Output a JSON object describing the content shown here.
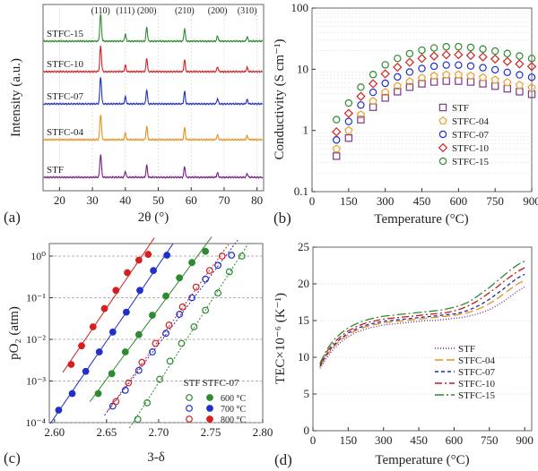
{
  "panels": [
    {
      "letter": "(a)",
      "title": "",
      "chart_data": {
        "type": "line",
        "xlabel": "2θ (°)",
        "ylabel": "Intensity (a.u.)",
        "xlim": [
          15,
          82
        ],
        "x_ticks": [
          "20",
          "30",
          "40",
          "50",
          "60",
          "70",
          "80"
        ],
        "peaks": [
          {
            "hkl": "(110)",
            "two_theta": 32.5
          },
          {
            "hkl": "(111)",
            "two_theta": 40.0
          },
          {
            "hkl": "(200)",
            "two_theta": 46.5
          },
          {
            "hkl": "(210)",
            "two_theta": 58.0
          },
          {
            "hkl": "(200)",
            "two_theta": 68.0
          },
          {
            "hkl": "(310)",
            "two_theta": 77.0
          }
        ],
        "series": [
          {
            "name": "STFC-15",
            "color": "#2e8b30"
          },
          {
            "name": "STFC-10",
            "color": "#d62020"
          },
          {
            "name": "STFC-07",
            "color": "#2030c8"
          },
          {
            "name": "STFC-04",
            "color": "#e8901c"
          },
          {
            "name": "STF",
            "color": "#7a1f8a"
          }
        ]
      }
    },
    {
      "letter": "(b)",
      "chart_data": {
        "type": "scatter",
        "xlabel": "Temperature (°C)",
        "ylabel": "Conductivity (S cm⁻¹)",
        "xlim": [
          0,
          900
        ],
        "ylim": [
          0.1,
          100
        ],
        "yscale": "log",
        "x_ticks": [
          "0",
          "150",
          "300",
          "450",
          "600",
          "750",
          "900"
        ],
        "y_ticks": [
          "0.1",
          "1",
          "10",
          "100"
        ],
        "x": [
          100,
          150,
          200,
          250,
          300,
          350,
          400,
          450,
          500,
          550,
          600,
          650,
          700,
          750,
          800,
          850,
          900
        ],
        "series": [
          {
            "name": "STF",
            "marker": "square",
            "color": "#7a3a8a",
            "values": [
              0.38,
              0.75,
              1.5,
              2.4,
              3.4,
              4.3,
              5.1,
              5.8,
              6.2,
              6.4,
              6.4,
              6.2,
              5.8,
              5.3,
              4.8,
              4.3,
              3.9
            ]
          },
          {
            "name": "STFC-04",
            "marker": "pentagon",
            "color": "#e8a030",
            "values": [
              0.5,
              1.0,
              1.8,
              3.0,
              4.2,
              5.3,
              6.3,
              7.2,
              7.8,
              8.1,
              8.1,
              7.8,
              7.3,
              6.7,
              6.1,
              5.5,
              5.0
            ]
          },
          {
            "name": "STFC-07",
            "marker": "circle",
            "color": "#2030c8",
            "values": [
              0.7,
              1.4,
              2.6,
              4.2,
              5.9,
              7.5,
              9.0,
              10.3,
              11.2,
              11.7,
              11.7,
              11.3,
              10.6,
              9.8,
              8.9,
              8.1,
              7.4
            ]
          },
          {
            "name": "STFC-10",
            "marker": "diamond",
            "color": "#d62020",
            "values": [
              0.95,
              1.9,
              3.6,
              5.8,
              8.4,
              10.8,
              13.0,
              15.0,
              16.4,
              17.2,
              17.3,
              16.8,
              15.9,
              14.7,
              13.4,
              12.2,
              11.1
            ]
          },
          {
            "name": "STFC-15",
            "marker": "circle",
            "color": "#2e8b30",
            "values": [
              1.5,
              2.8,
              5.1,
              8.2,
              11.8,
              15.0,
              18.0,
              20.5,
              22.3,
              23.3,
              23.4,
              22.7,
              21.4,
              19.8,
              18.1,
              16.5,
              15.0
            ]
          }
        ]
      }
    },
    {
      "letter": "(c)",
      "chart_data": {
        "type": "scatter",
        "xlabel": "3-δ",
        "ylabel": "pO₂ (atm)",
        "xlim": [
          2.595,
          2.8
        ],
        "ylim": [
          0.0001,
          2
        ],
        "yscale": "log",
        "x_ticks": [
          "2.60",
          "2.65",
          "2.70",
          "2.75",
          "2.80"
        ],
        "y_ticks": [
          "10⁻⁴",
          "10⁻³",
          "10⁻²",
          "10⁻¹",
          "10⁰"
        ],
        "legend_headers": [
          "STF",
          "STFC-07"
        ],
        "legend_rows": [
          "600 °C",
          "700 °C",
          "800 °C"
        ],
        "series": [
          {
            "name": "STF 600 °C",
            "color": "#2e8b30",
            "filled": false,
            "x": [
              2.68,
              2.689,
              2.701,
              2.711,
              2.722,
              2.734,
              2.745,
              2.757,
              2.768,
              2.78
            ],
            "values": [
              0.00012,
              0.0003,
              0.0011,
              0.003,
              0.008,
              0.02,
              0.05,
              0.13,
              0.42,
              1.0
            ]
          },
          {
            "name": "STF 700 °C",
            "color": "#2030c8",
            "filled": false,
            "x": [
              2.656,
              2.668,
              2.681,
              2.694,
              2.707,
              2.72,
              2.732,
              2.745,
              2.757,
              2.77
            ],
            "values": [
              0.00025,
              0.0006,
              0.0018,
              0.005,
              0.014,
              0.04,
              0.1,
              0.28,
              0.6,
              1.05
            ]
          },
          {
            "name": "STF 800 °C",
            "color": "#d62020",
            "filled": false,
            "x": [
              2.659,
              2.671,
              2.684,
              2.697,
              2.71,
              2.723,
              2.736,
              2.749,
              2.761
            ],
            "values": [
              0.00032,
              0.0009,
              0.0028,
              0.008,
              0.022,
              0.06,
              0.18,
              0.45,
              1.0
            ]
          },
          {
            "name": "STFC-07 600 °C",
            "color": "#2e8b30",
            "filled": true,
            "x": [
              2.642,
              2.655,
              2.668,
              2.681,
              2.694,
              2.707,
              2.72,
              2.732,
              2.745
            ],
            "values": [
              0.0005,
              0.0015,
              0.005,
              0.013,
              0.038,
              0.11,
              0.3,
              0.7,
              1.3
            ]
          },
          {
            "name": "STFC-07 700 °C",
            "color": "#2030c8",
            "filled": true,
            "x": [
              2.604,
              2.617,
              2.63,
              2.643,
              2.656,
              2.669,
              2.682,
              2.695,
              2.708
            ],
            "values": [
              0.0002,
              0.0005,
              0.0017,
              0.005,
              0.015,
              0.045,
              0.15,
              0.45,
              1.05
            ]
          },
          {
            "name": "STFC-07 800 °C",
            "color": "#d62020",
            "filled": true,
            "x": [
              2.616,
              2.626,
              2.637,
              2.648,
              2.659,
              2.67,
              2.681,
              2.69
            ],
            "values": [
              0.0025,
              0.007,
              0.02,
              0.055,
              0.15,
              0.4,
              0.8,
              1.1
            ]
          }
        ]
      }
    },
    {
      "letter": "(d)",
      "chart_data": {
        "type": "line",
        "xlabel": "Temperature (°C)",
        "ylabel": "TEC×10⁻⁶ (K⁻¹)",
        "xlim": [
          0,
          930
        ],
        "ylim": [
          0,
          25
        ],
        "x_ticks": [
          "0",
          "150",
          "300",
          "450",
          "600",
          "750",
          "900"
        ],
        "y_ticks": [
          "0",
          "5",
          "10",
          "15",
          "20",
          "25"
        ],
        "x": [
          30,
          60,
          90,
          120,
          150,
          180,
          210,
          240,
          270,
          300,
          330,
          360,
          390,
          420,
          450,
          480,
          510,
          540,
          570,
          600,
          630,
          660,
          690,
          720,
          750,
          780,
          810,
          840,
          870,
          900
        ],
        "series": [
          {
            "name": "STF",
            "color": "#7a1f8a",
            "dash": "1,2",
            "values": [
              8.5,
              10.0,
              11.2,
              12.1,
              12.8,
              13.3,
              13.7,
              14.0,
              14.2,
              14.4,
              14.5,
              14.6,
              14.7,
              14.8,
              14.9,
              15.0,
              15.0,
              15.1,
              15.2,
              15.3,
              15.4,
              15.6,
              15.8,
              16.1,
              16.5,
              17.0,
              17.6,
              18.3,
              19.0,
              19.6
            ]
          },
          {
            "name": "STFC-04",
            "color": "#e8901c",
            "dash": "9,4",
            "values": [
              8.7,
              10.3,
              11.5,
              12.4,
              13.1,
              13.6,
              14.0,
              14.3,
              14.5,
              14.7,
              14.8,
              14.9,
              15.0,
              15.1,
              15.2,
              15.3,
              15.4,
              15.5,
              15.6,
              15.7,
              15.9,
              16.1,
              16.4,
              16.8,
              17.3,
              17.9,
              18.6,
              19.3,
              20.0,
              20.5
            ]
          },
          {
            "name": "STFC-07",
            "color": "#20309a",
            "dash": "4,3",
            "values": [
              8.8,
              10.5,
              11.7,
              12.6,
              13.3,
              13.8,
              14.2,
              14.5,
              14.7,
              14.9,
              15.0,
              15.1,
              15.2,
              15.3,
              15.4,
              15.5,
              15.6,
              15.7,
              15.8,
              15.9,
              16.1,
              16.4,
              16.8,
              17.3,
              17.9,
              18.6,
              19.3,
              20.1,
              20.8,
              21.3
            ]
          },
          {
            "name": "STFC-10",
            "color": "#c81818",
            "dash": "8,3,2,3",
            "values": [
              9.0,
              10.8,
              12.0,
              12.9,
              13.6,
              14.1,
              14.5,
              14.8,
              15.0,
              15.2,
              15.3,
              15.4,
              15.5,
              15.6,
              15.7,
              15.8,
              15.9,
              16.0,
              16.1,
              16.3,
              16.6,
              17.0,
              17.5,
              18.1,
              18.8,
              19.5,
              20.3,
              21.0,
              21.7,
              22.2
            ]
          },
          {
            "name": "STFC-15",
            "color": "#2e8b30",
            "dash": "10,3,2,3",
            "values": [
              9.2,
              11.1,
              12.4,
              13.3,
              14.0,
              14.5,
              14.9,
              15.2,
              15.4,
              15.6,
              15.7,
              15.8,
              15.9,
              16.0,
              16.1,
              16.2,
              16.3,
              16.4,
              16.6,
              16.8,
              17.1,
              17.5,
              18.1,
              18.8,
              19.5,
              20.3,
              21.1,
              21.9,
              22.6,
              23.1
            ]
          }
        ]
      }
    }
  ]
}
